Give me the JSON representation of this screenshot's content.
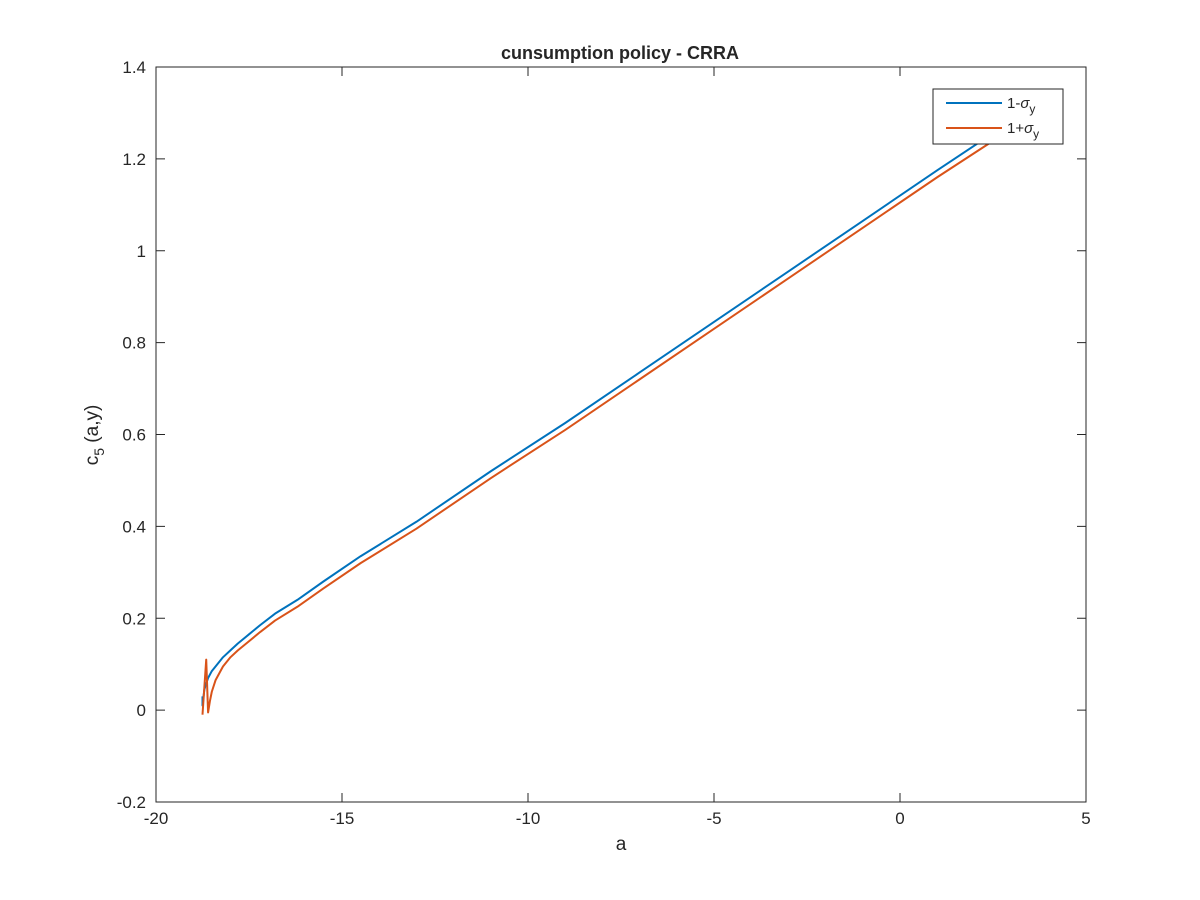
{
  "chart_data": {
    "type": "line",
    "title": "cunsumption policy - CRRA",
    "xlabel": "a",
    "ylabel": {
      "base": "c",
      "sub": "5",
      "rest": " (a,y)"
    },
    "xlim": [
      -20,
      5
    ],
    "ylim": [
      -0.2,
      1.4
    ],
    "xticks": [
      -20,
      -15,
      -10,
      -5,
      0,
      5
    ],
    "yticks": [
      -0.2,
      0,
      0.2,
      0.4,
      0.6,
      0.8,
      1,
      1.2,
      1.4
    ],
    "xtick_labels": [
      "-20",
      "-15",
      "-10",
      "-5",
      "0",
      "5"
    ],
    "ytick_labels": [
      "-0.2",
      "0",
      "0.2",
      "0.4",
      "0.6",
      "0.8",
      "1",
      "1.2",
      "1.4"
    ],
    "grid": false,
    "legend_position": "top-right",
    "series": [
      {
        "name": "1-σy",
        "legend": {
          "main": "1-",
          "sigma": "σ",
          "sub": "y"
        },
        "color": "#0072BD",
        "x": [
          -18.75,
          -18.75,
          -18.7,
          -18.6,
          -18.5,
          -18.4,
          -18.3,
          -18.2,
          -18.0,
          -17.8,
          -17.5,
          -17.2,
          -16.8,
          -16.2,
          -15.5,
          -14.5,
          -13.0,
          -11.0,
          -9.0,
          -7.0,
          -5.0,
          -3.0,
          -1.0,
          1.0,
          2.8
        ],
        "y": [
          0.03,
          0.01,
          0.045,
          0.07,
          0.085,
          0.095,
          0.105,
          0.115,
          0.13,
          0.145,
          0.165,
          0.185,
          0.21,
          0.24,
          0.28,
          0.335,
          0.41,
          0.52,
          0.625,
          0.735,
          0.845,
          0.955,
          1.065,
          1.175,
          1.272
        ]
      },
      {
        "name": "1+σy",
        "legend": {
          "main": "1+",
          "sigma": "σ",
          "sub": "y"
        },
        "color": "#D95319",
        "x": [
          -18.75,
          -18.65,
          -18.6,
          -18.55,
          -18.5,
          -18.4,
          -18.3,
          -18.2,
          -18.0,
          -17.8,
          -17.5,
          -17.2,
          -16.8,
          -16.2,
          -15.5,
          -14.5,
          -13.0,
          -11.0,
          -9.0,
          -7.0,
          -5.0,
          -3.0,
          -1.0,
          1.0,
          2.8
        ],
        "y": [
          -0.01,
          0.11,
          -0.005,
          0.02,
          0.04,
          0.065,
          0.08,
          0.095,
          0.115,
          0.13,
          0.15,
          0.17,
          0.195,
          0.225,
          0.265,
          0.32,
          0.395,
          0.505,
          0.61,
          0.72,
          0.83,
          0.94,
          1.05,
          1.16,
          1.255
        ]
      }
    ]
  }
}
